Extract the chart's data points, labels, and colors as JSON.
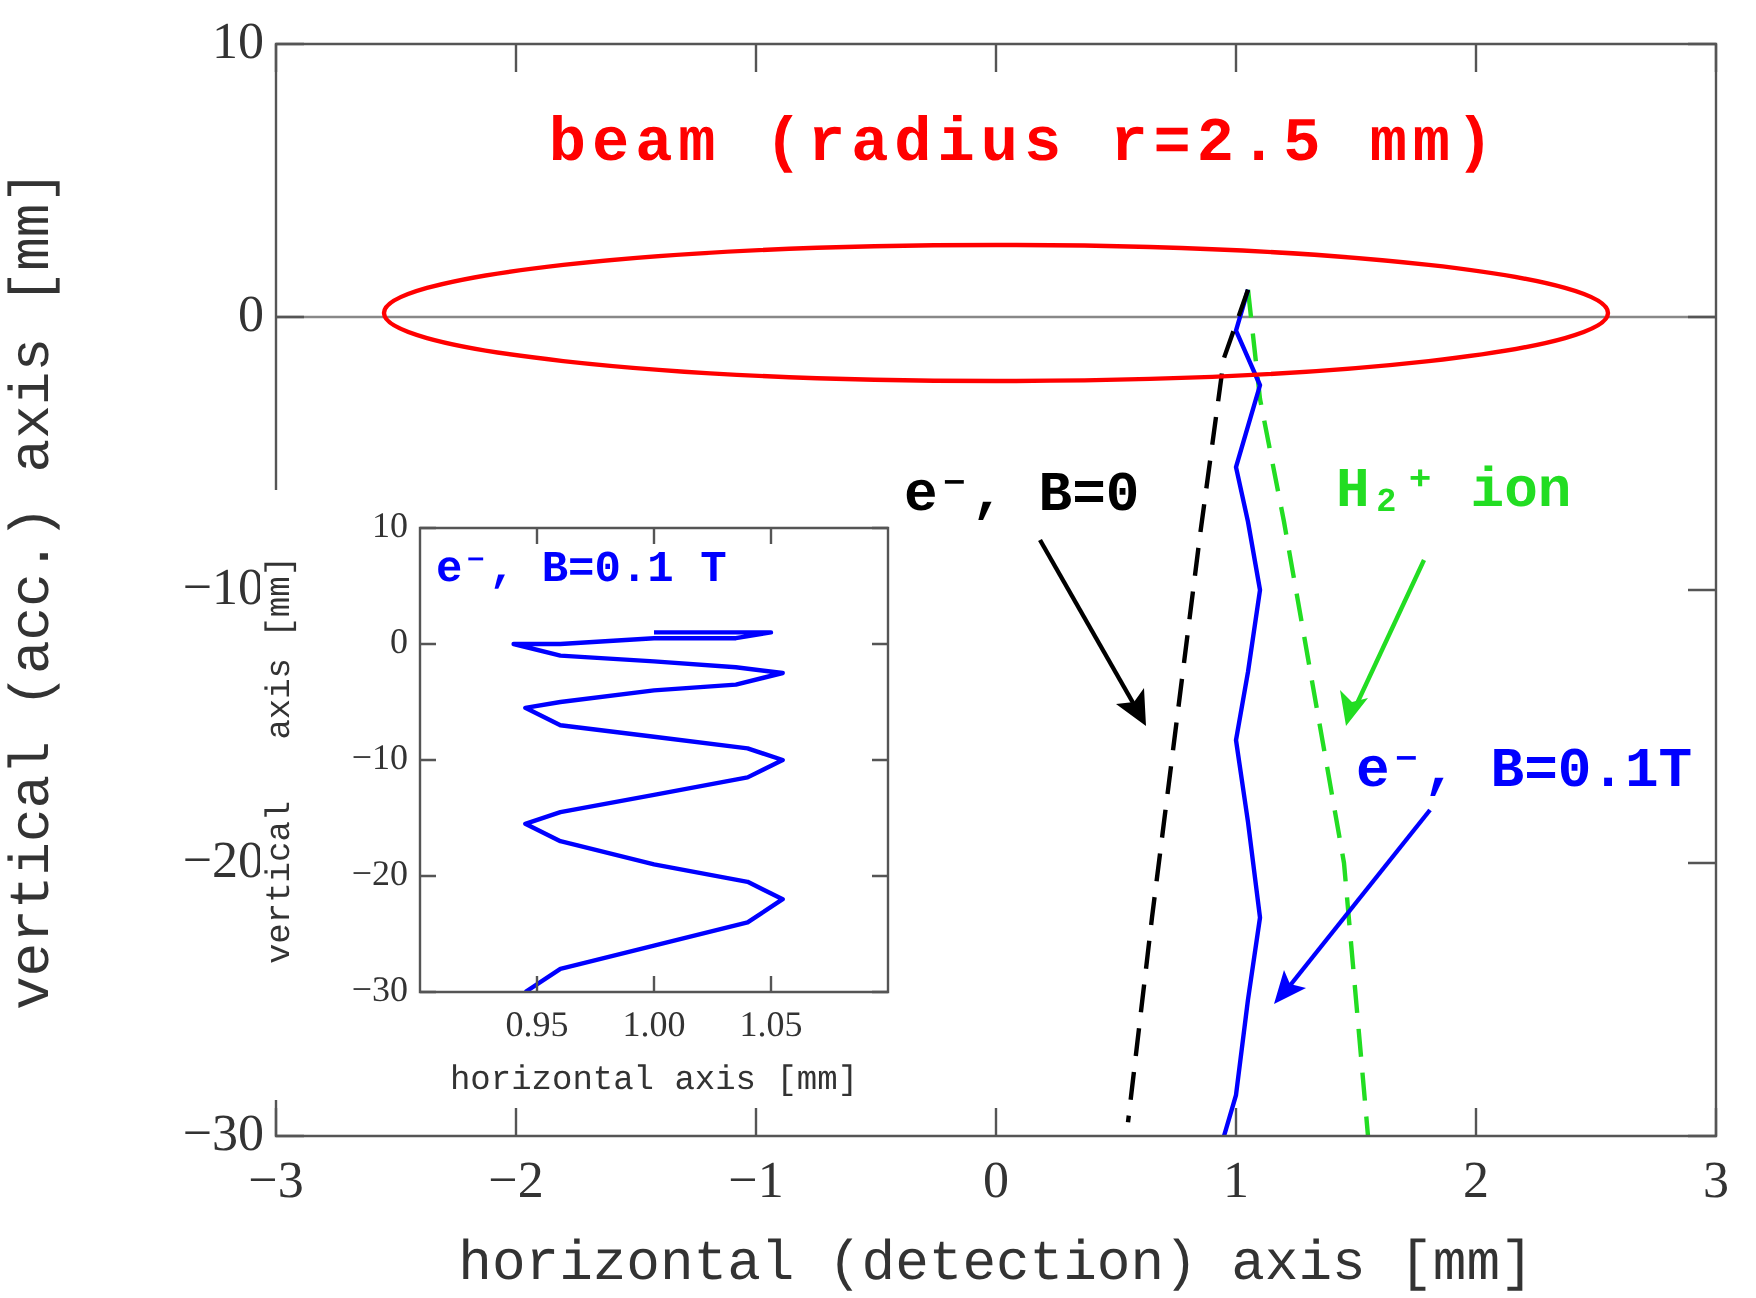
{
  "chart_data": [
    {
      "type": "line",
      "xlabel": "horizontal (detection) axis [mm]",
      "ylabel": "vertical (acc.) axis [mm]",
      "xlim": [
        -3,
        3
      ],
      "xticks": [
        -3,
        -2,
        -1,
        0,
        1,
        2,
        3
      ],
      "ylim": [
        -30,
        10
      ],
      "yticks": [
        -30,
        -20,
        -10,
        0,
        10
      ],
      "series": [
        {
          "color": "#000000",
          "line_style": "dashed",
          "x": [
            1.05,
            0.95,
            0.85,
            0.75,
            0.65,
            0.55
          ],
          "values": [
            1.0,
            -1.5,
            -8,
            -15,
            -22,
            -29.5
          ]
        },
        {
          "color": "#0000ff",
          "line_style": "solid",
          "x": [
            1.05,
            1.0,
            1.05,
            1.1,
            1.05,
            1.0,
            1.05,
            1.1,
            1.05,
            1.0,
            1.05,
            1.1,
            1.05,
            1.0,
            0.95
          ],
          "values": [
            1.0,
            -0.5,
            -1.5,
            -2.5,
            -4.0,
            -5.5,
            -7.5,
            -10,
            -13,
            -15.5,
            -18.5,
            -22,
            -25,
            -28.5,
            -30
          ]
        },
        {
          "color": "#22dd22",
          "line_style": "dashed",
          "x": [
            1.05,
            1.1,
            1.2,
            1.3,
            1.45,
            1.55
          ],
          "values": [
            1.0,
            -3,
            -7.5,
            -12.5,
            -20,
            -30
          ]
        }
      ],
      "ref_lines": [
        {
          "axis": "y",
          "value": 0,
          "color": "#888888"
        }
      ],
      "annotations": [
        "beam (radius r=2.5 mm)",
        "e⁻, B=0",
        "H₂⁺ ion",
        "e⁻, B=0.1T"
      ]
    },
    {
      "type": "line",
      "xlabel": "horizontal axis [mm]",
      "ylabel": "vertical   axis [mm]",
      "xlim": [
        0.9,
        1.1
      ],
      "xticks": [
        0.95,
        {
          "value": 1.0,
          "label": "1.00"
        },
        1.05
      ],
      "ylim": [
        -30,
        10
      ],
      "yticks": [
        -30,
        -20,
        -10,
        0,
        10
      ],
      "series": [
        {
          "name": "e⁻, B=0.1 T",
          "color": "#0000ff",
          "line_style": "solid",
          "x": [
            1.0,
            1.05,
            1.035,
            1.0,
            0.96,
            0.94,
            0.96,
            1.0,
            1.035,
            1.055,
            1.035,
            1.0,
            0.96,
            0.945,
            0.96,
            1.0,
            1.04,
            1.055,
            1.04,
            1.0,
            0.96,
            0.945,
            0.96,
            1.0,
            1.04,
            1.055,
            1.04,
            1.0,
            0.96,
            0.945
          ],
          "values": [
            1.0,
            1.0,
            0.5,
            0.5,
            0,
            0,
            -1,
            -1.5,
            -2,
            -2.5,
            -3.5,
            -4,
            -5,
            -5.5,
            -7,
            -8,
            -9,
            -10,
            -11.5,
            -13,
            -14.5,
            -15.5,
            -17,
            -19,
            -20.5,
            -22,
            -24,
            -26,
            -28,
            -30
          ]
        }
      ]
    }
  ]
}
